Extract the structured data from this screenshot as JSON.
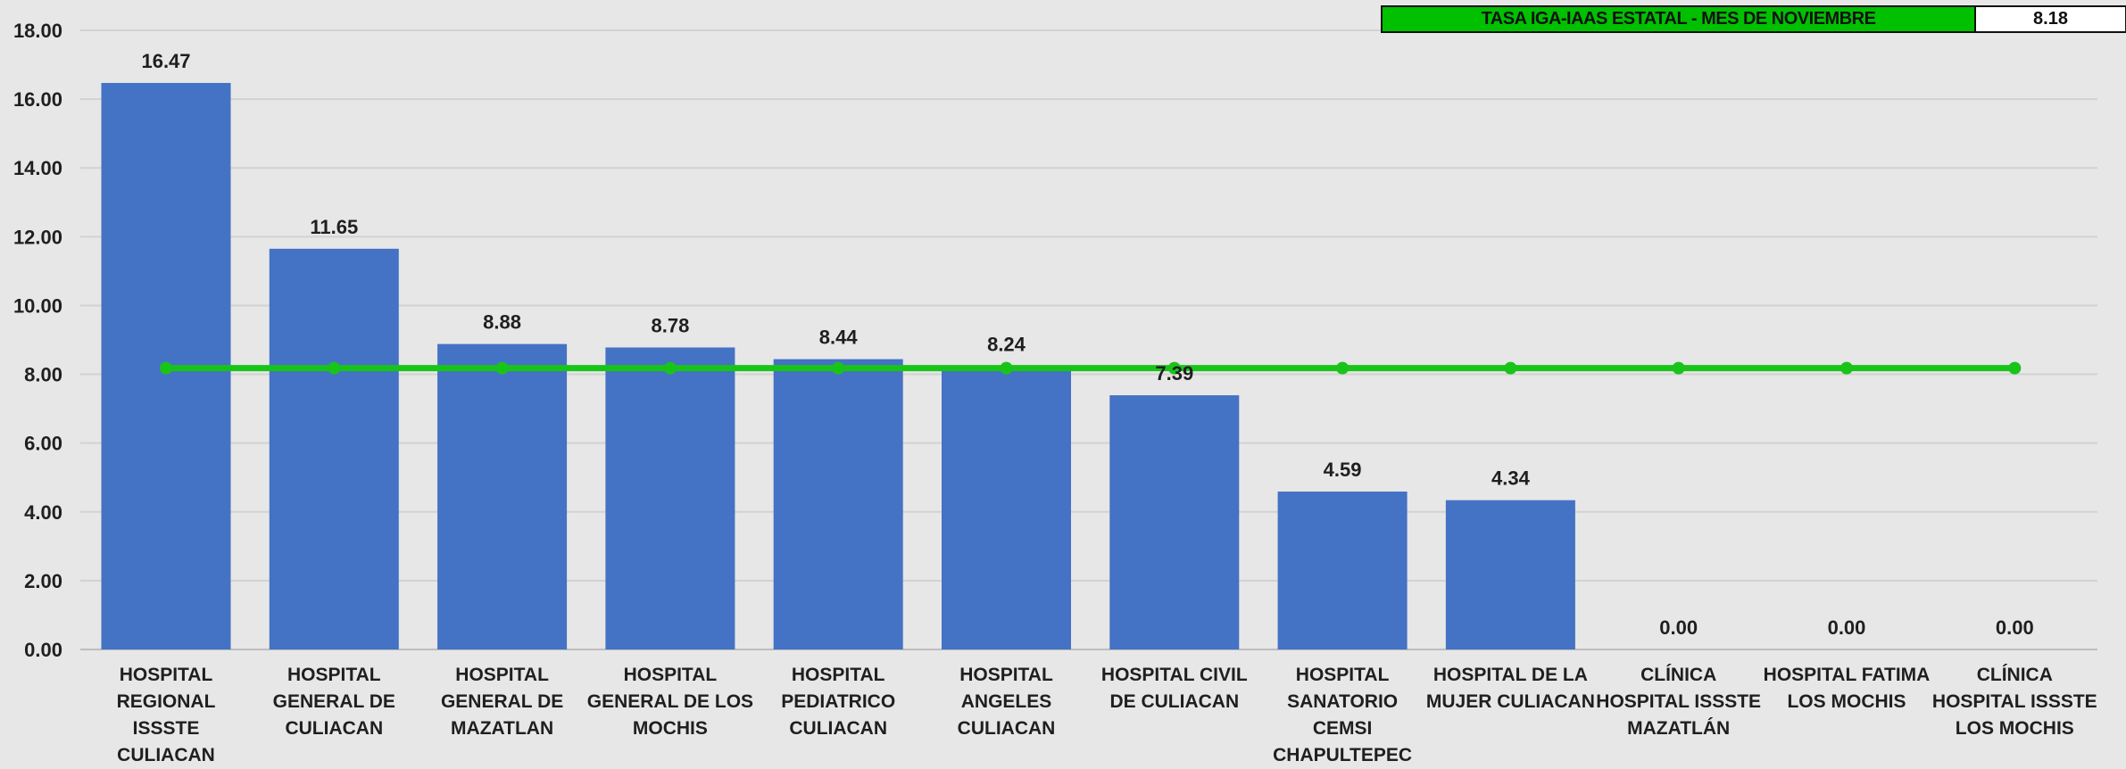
{
  "chart_data": {
    "type": "bar",
    "categories": [
      "HOSPITAL REGIONAL ISSSTE CULIACAN",
      "HOSPITAL GENERAL DE CULIACAN",
      "HOSPITAL GENERAL DE MAZATLAN",
      "HOSPITAL GENERAL DE LOS MOCHIS",
      "HOSPITAL PEDIATRICO CULIACAN",
      "HOSPITAL ANGELES CULIACAN",
      "HOSPITAL CIVIL DE CULIACAN",
      "HOSPITAL SANATORIO CEMSI CHAPULTEPEC",
      "HOSPITAL DE LA MUJER CULIACAN",
      "CLÍNICA HOSPITAL ISSSTE MAZATLÁN",
      "HOSPITAL FATIMA LOS MOCHIS",
      "CLÍNICA HOSPITAL ISSSTE LOS MOCHIS"
    ],
    "values": [
      16.47,
      11.65,
      8.88,
      8.78,
      8.44,
      8.24,
      7.39,
      4.59,
      4.34,
      0.0,
      0.0,
      0.0
    ],
    "value_labels": [
      "16.47",
      "11.65",
      "8.88",
      "8.78",
      "8.44",
      "8.24",
      "7.39",
      "4.59",
      "4.34",
      "0.00",
      "0.00",
      "0.00"
    ],
    "reference_line": {
      "name": "TASA IGA-IAAS ESTATAL - MES DE NOVIEMBRE",
      "value": 8.18,
      "value_label": "8.18"
    },
    "ylim": [
      0,
      18
    ],
    "y_ticks": [
      "0.00",
      "2.00",
      "4.00",
      "6.00",
      "8.00",
      "10.00",
      "12.00",
      "14.00",
      "16.00",
      "18.00"
    ],
    "grid": true,
    "legend_position": "top-right",
    "title": "",
    "xlabel": "",
    "ylabel": "",
    "colors": {
      "bars": "#4472c4",
      "reference_line": "#19c419",
      "background": "#e7e7e7",
      "grid": "#d2d2d2",
      "legend_fill": "#00c000"
    }
  }
}
